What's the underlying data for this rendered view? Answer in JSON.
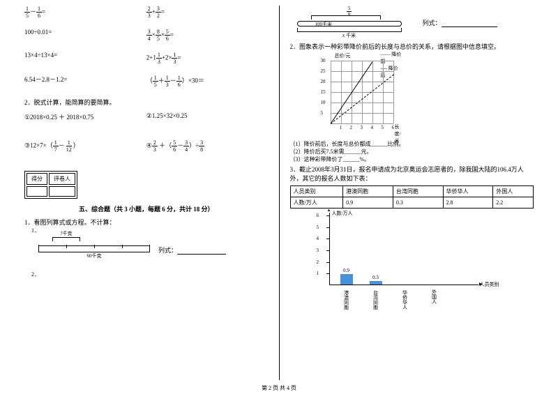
{
  "left": {
    "eq1a": {
      "n": "1",
      "d": "5",
      "n2": "1",
      "d2": "6",
      "tail": "="
    },
    "eq1b_pre": {
      "n": "2",
      "d": "3",
      "plus": "+",
      "n2": "3",
      "d2": "2",
      "tail": "="
    },
    "eq2a": "100÷0.01=",
    "eq2b": {
      "f1n": "3",
      "f1d": "4",
      "f2n": "8",
      "f2d": "5",
      "f3n": "5",
      "f3d": "6",
      "tail": "="
    },
    "eq3a": "13×4÷13×4=",
    "eq3b": "2+1",
    "eq3b_f1": {
      "n": "1",
      "d": "3"
    },
    "eq3b_mid": "+2×",
    "eq3b_f2": {
      "n": "1",
      "d": "3"
    },
    "eq3b_tail": "=",
    "eq4a": "6.54－2.8－1.2=",
    "eq4b_f1": {
      "n": "1",
      "d": "5"
    },
    "eq4b_f2": {
      "n": "1",
      "d": "3"
    },
    "eq4b_f3": {
      "n": "1",
      "d": "6"
    },
    "eq4b_tail": "×30＝",
    "q2": "2．脱式计算，能简算的要简算。",
    "q2a": "①2018×0.25 ＋ 2018×0.75",
    "q2b": "②1.25×32×0.25",
    "q2c_pre": "③12×7×（",
    "q2c_f1": {
      "n": "1",
      "d": "7"
    },
    "q2c_mid": "－",
    "q2c_f2": {
      "n": "1",
      "d": "12"
    },
    "q2c_tail": "）",
    "q2d_pre": "④",
    "q2d_f1": {
      "n": "2",
      "d": "3"
    },
    "q2d_mid1": " ＋（",
    "q2d_f2": {
      "n": "5",
      "d": "6"
    },
    "q2d_mid2": "－",
    "q2d_f3": {
      "n": "3",
      "d": "4"
    },
    "q2d_mid3": "）÷",
    "q2d_f4": {
      "n": "3",
      "d": "8"
    },
    "score_h1": "得分",
    "score_h2": "评卷人",
    "section5": "五、综合题（共 3 小题，每题 6 分，共计 18 分）",
    "q5_1": "1．看图列算式或方程。不计算：",
    "q5_1_1": "1．",
    "d1_top": "?千克",
    "d1_bot": "60千克",
    "d1_label": "列式：",
    "q5_1_2": "2．"
  },
  "right": {
    "d2_frac": {
      "n": "5",
      "d": "8"
    },
    "d2_top": "100千米",
    "d2_bot": "x 千米",
    "d2_label": "列式：",
    "q2": "2．图象表示一种彩带降价前后的长度与总价的关系，请根据图中信息填空。",
    "chart": {
      "ylabel": "总价/元",
      "xlabel": "长度/米",
      "legend1": "降价前",
      "legend2": "降价后",
      "yticks": [
        "5",
        "10",
        "15",
        "20",
        "25",
        "30"
      ],
      "xticks": [
        "1",
        "2",
        "3",
        "4",
        "5",
        "6"
      ]
    },
    "q2_1": "（1）降价前后，长度与总价都成______比例。",
    "q2_2": "（2）降价后买7.5米需______元。",
    "q2_3": "（3）这种彩带降价了______%。",
    "q3": "3．截止2008年3月31日，报名申请成为北京奥运会志愿者的，除我国大陆的106.4万人外，其它的报名人数如下表：",
    "table": {
      "h": [
        "人员类别",
        "港澳同胞",
        "台湾同胞",
        "华侨华人",
        "外国人"
      ],
      "r": [
        "人数/万人",
        "0.9",
        "0.3",
        "2.8",
        "2.2"
      ]
    },
    "bar": {
      "ylabel": "人数/万人",
      "xlabel": "人员类别",
      "yticks": [
        "1",
        "2",
        "3",
        "4",
        "5",
        "6"
      ],
      "cats": [
        "港澳同胞",
        "台湾同胞",
        "华侨华人",
        "外国人"
      ],
      "vals": [
        0.9,
        0.3,
        null,
        null
      ],
      "labels": [
        "0.9",
        "0.3",
        "",
        ""
      ],
      "color": "#4a90d9"
    }
  },
  "footer": "第 2 页 共 4 页"
}
